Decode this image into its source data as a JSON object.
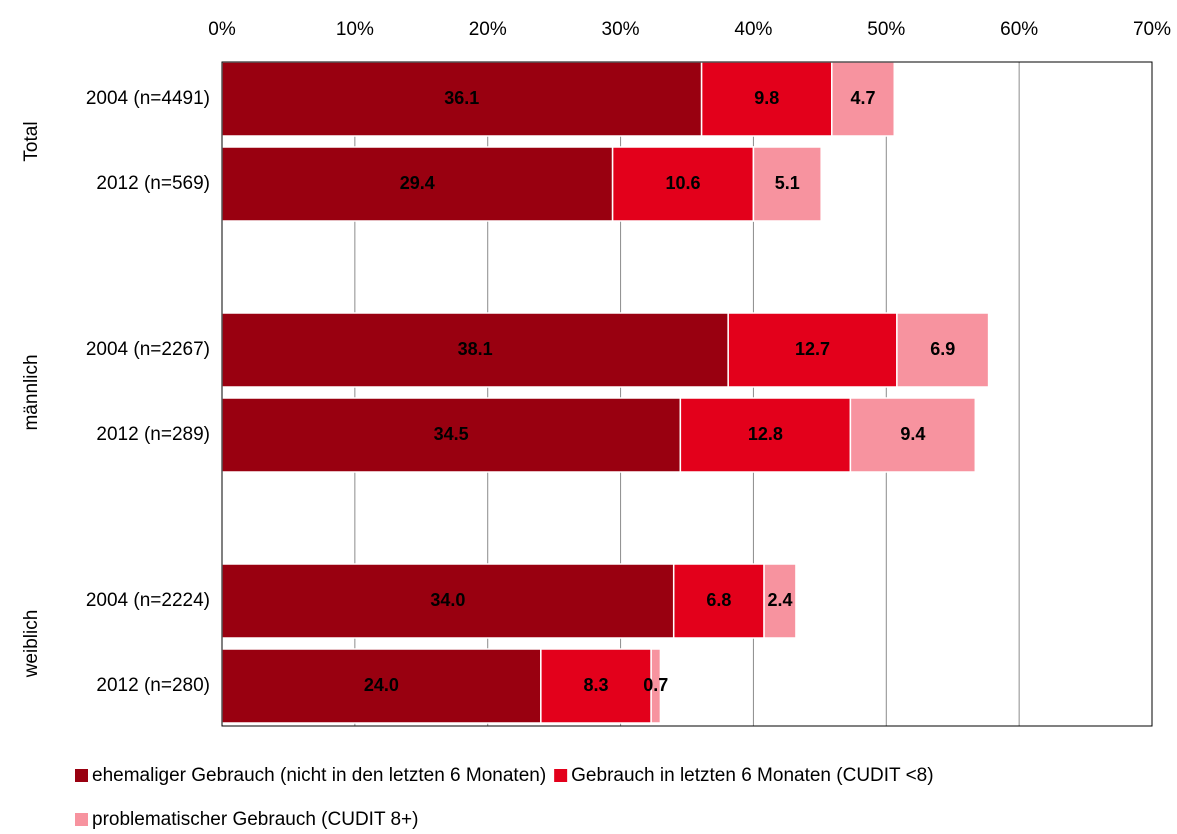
{
  "chart_data": {
    "type": "stacked-bar-horizontal",
    "groups": [
      "Total",
      "männlich",
      "weiblich"
    ],
    "categories": [
      "2004 (n=4491)",
      "2012 (n=569)",
      "2004 (n=2267)",
      "2012 (n=289)",
      "2004 (n=2224)",
      "2012 (n=280)"
    ],
    "series": [
      {
        "name": "ehemaliger Gebrauch (nicht in den letzten 6 Monaten)",
        "color": "#990010",
        "label_color": "#ffffff",
        "values": [
          36.1,
          29.4,
          38.1,
          34.5,
          34.0,
          24.0
        ],
        "value_labels": [
          "36.1",
          "29.4",
          "38.1",
          "34.5",
          "34.0",
          "24.0"
        ]
      },
      {
        "name": "Gebrauch in letzten 6 Monaten (CUDIT <8)",
        "color": "#e3001b",
        "label_color": "#ffffff",
        "values": [
          9.8,
          10.6,
          12.7,
          12.8,
          6.8,
          8.3
        ],
        "value_labels": [
          "9.8",
          "10.6",
          "12.7",
          "12.8",
          "6.8",
          "8.3"
        ]
      },
      {
        "name": "problematischer Gebrauch (CUDIT 8+)",
        "color": "#f7939f",
        "label_color": "#000000",
        "values": [
          4.7,
          5.1,
          6.9,
          9.4,
          2.4,
          0.7
        ],
        "value_labels": [
          "4.7",
          "5.1",
          "6.9",
          "9.4",
          "2.4",
          "0.7"
        ]
      }
    ],
    "xlim": [
      0,
      70
    ],
    "xticks": [
      {
        "value": 0,
        "label": "0%"
      },
      {
        "value": 10,
        "label": "10%"
      },
      {
        "value": 20,
        "label": "20%"
      },
      {
        "value": 30,
        "label": "30%"
      },
      {
        "value": 40,
        "label": "40%"
      },
      {
        "value": 50,
        "label": "50%"
      },
      {
        "value": 60,
        "label": "60%"
      },
      {
        "value": 70,
        "label": "70%"
      }
    ],
    "grid": true,
    "legend": "bottom"
  }
}
